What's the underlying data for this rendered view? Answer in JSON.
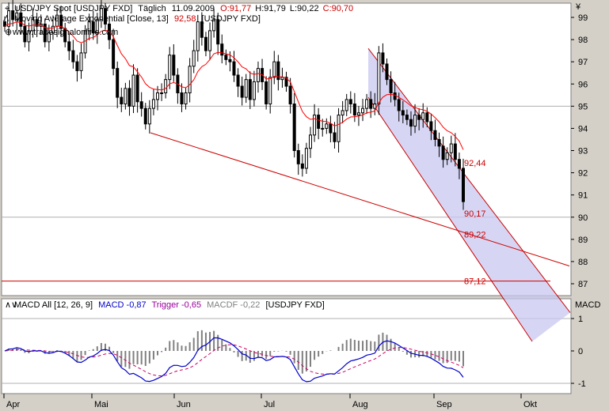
{
  "header": {
    "symbol": "USD/JPY Spot [USDJPY FXD]",
    "period": "Täglich",
    "date": "11.09.2009",
    "open": "O:91,77",
    "high": "H:91,79",
    "low": "L:90,22",
    "close": "C:90,70",
    "ema_label": "Moving Average Exponential [Close, 13]",
    "ema_value": "92,58",
    "ema_symbol": "[USDJPY FXD]",
    "watermark": "www.tradesignalonline.com"
  },
  "macd_header": {
    "title": "MACD All [12, 26, 9]",
    "macd": "MACD -0,87",
    "trigger": "Trigger -0,65",
    "macdf": "MACDF -0,22",
    "symbol": "[USDJPY FXD]"
  },
  "colors": {
    "candle": "#000000",
    "ema": "#ff0000",
    "trendline": "#cc0000",
    "channel_fill": "#c8c8f0",
    "macd": "#0000cc",
    "trigger": "#cc0066",
    "hist": "#808080"
  },
  "chart_data": [
    {
      "type": "candlestick",
      "y_axis_unit": "¥",
      "ylim": [
        86.6,
        99.8
      ],
      "yticks": [
        87,
        88,
        89,
        90,
        91,
        92,
        93,
        94,
        95,
        96,
        97,
        98,
        99
      ],
      "ytick_labels": [
        "87",
        "88",
        "89",
        "90",
        "91",
        "92",
        "93",
        "94",
        "95",
        "96",
        "97",
        "98",
        "99"
      ],
      "months": [
        "Apr",
        "Mai",
        "Jun",
        "Jul",
        "Aug",
        "Sep",
        "Okt"
      ],
      "series": [
        {
          "name": "USD/JPY Spot",
          "close": [
            98.6,
            99.3,
            98.9,
            99.2,
            98.6,
            97.9,
            98.4,
            98.9,
            98.6,
            98.7,
            97.9,
            98.3,
            98.6,
            99.1,
            98.5,
            97.9,
            97.5,
            97.0,
            96.6,
            97.4,
            98.4,
            98.8,
            98.3,
            98.9,
            99.4,
            98.7,
            98.0,
            96.7,
            95.4,
            95.1,
            95.8,
            95.0,
            96.4,
            95.2,
            94.9,
            94.2,
            94.9,
            95.3,
            95.6,
            95.6,
            96.2,
            97.3,
            96.4,
            95.6,
            95.1,
            95.6,
            96.8,
            97.5,
            98.8,
            98.1,
            97.5,
            98.4,
            98.9,
            97.8,
            97.3,
            97.1,
            97.0,
            96.4,
            95.9,
            95.4,
            96.2,
            95.3,
            96.1,
            96.7,
            96.1,
            95.1,
            96.3,
            97.0,
            96.2,
            96.3,
            95.9,
            95.1,
            93.0,
            92.4,
            92.2,
            93.1,
            93.7,
            94.6,
            94.0,
            94.0,
            94.2,
            93.8,
            93.4,
            94.6,
            94.8,
            95.3,
            95.1,
            94.6,
            94.7,
            94.9,
            95.3,
            94.9,
            95.1,
            97.4,
            96.9,
            96.2,
            95.6,
            95.3,
            94.8,
            94.6,
            94.4,
            94.1,
            94.6,
            94.4,
            94.7,
            94.3,
            93.9,
            93.5,
            93.2,
            92.6,
            92.9,
            93.3,
            92.6,
            92.2,
            90.7
          ]
        },
        {
          "name": "Moving Average Exponential [Close, 13]",
          "ema_value": 92.58
        }
      ],
      "trendlines": [
        {
          "name": "support",
          "from": [
            "Jun",
            93.8
          ],
          "to": [
            "Okt",
            87.8
          ]
        },
        {
          "name": "horizontal",
          "value": 87.12
        }
      ],
      "channel": {
        "upper_end": 92.44,
        "lower_end": 90.17
      },
      "annotations": [
        "92,44",
        "90,17",
        "89,22",
        "87,12"
      ]
    },
    {
      "type": "macd",
      "ylim": [
        -1.35,
        1.35
      ],
      "yticks": [
        -1,
        0,
        1
      ],
      "ytick_labels": [
        "-1",
        "0",
        "1"
      ],
      "series": [
        {
          "name": "MACD",
          "last": -0.87
        },
        {
          "name": "Trigger",
          "last": -0.65
        },
        {
          "name": "MACDF",
          "last": -0.22
        }
      ]
    }
  ]
}
